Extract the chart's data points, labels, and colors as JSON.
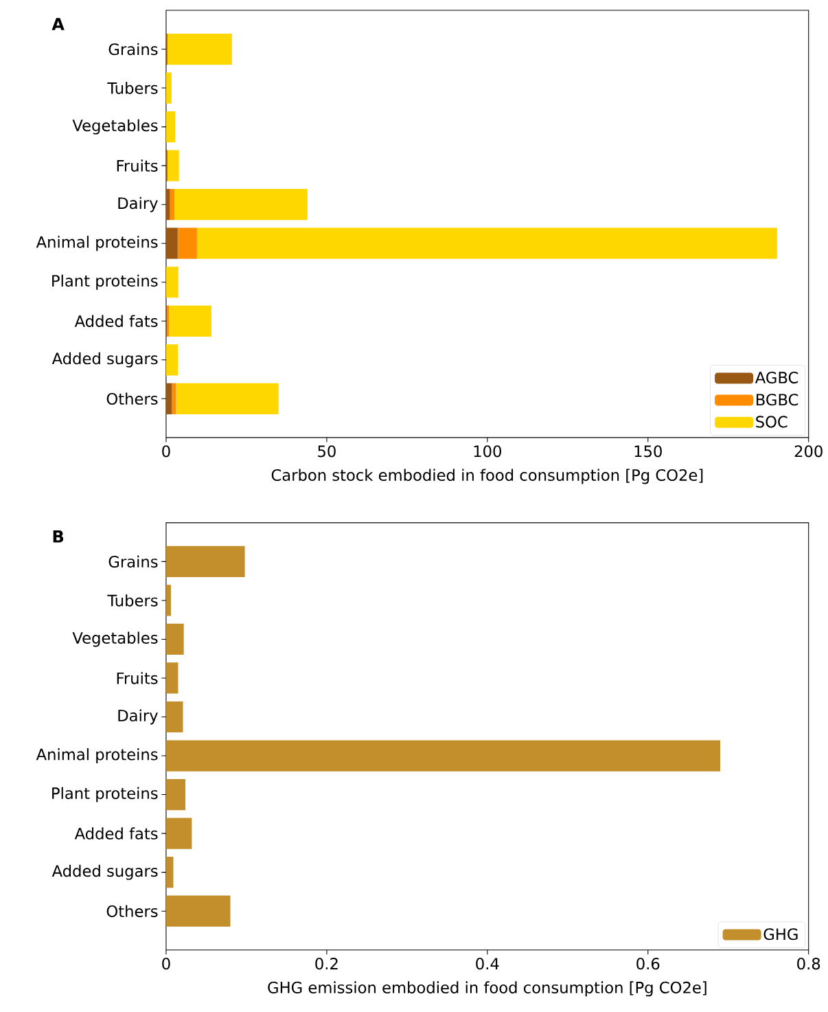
{
  "chart_data": [
    {
      "type": "bar",
      "title": "A",
      "orientation": "horizontal",
      "stacked": true,
      "categories": [
        "Grains",
        "Tubers",
        "Vegetables",
        "Fruits",
        "Dairy",
        "Animal proteins",
        "Plant proteins",
        "Added fats",
        "Added sugars",
        "Others"
      ],
      "series": [
        {
          "name": "AGBC",
          "color": "#995914",
          "values": [
            0.4,
            0.0,
            0.0,
            0.4,
            1.2,
            3.6,
            null,
            0.3,
            0.0,
            1.8
          ]
        },
        {
          "name": "BGBC",
          "color": "#ff8c00",
          "values": [
            null,
            0.0,
            0.0,
            0.0,
            1.4,
            6.0,
            0.0,
            0.6,
            0.0,
            1.3
          ]
        },
        {
          "name": "SOC",
          "color": "#ffd700",
          "values": [
            20.1,
            1.7,
            2.8,
            3.6,
            41.4,
            180.6,
            3.8,
            13.2,
            3.7,
            31.9
          ]
        }
      ],
      "xlim": [
        0,
        200
      ],
      "xticks": [
        0,
        50,
        100,
        150,
        200
      ],
      "xlabel": "Carbon stock embodied in food consumption [Pg CO2e]",
      "legend": "bottom right"
    },
    {
      "type": "bar",
      "title": "B",
      "orientation": "horizontal",
      "categories": [
        "Grains",
        "Tubers",
        "Vegetables",
        "Fruits",
        "Dairy",
        "Animal proteins",
        "Plant proteins",
        "Added fats",
        "Added sugars",
        "Others"
      ],
      "series": [
        {
          "name": "GHG",
          "color": "#c28f2c",
          "values": [
            0.098,
            0.006,
            0.022,
            0.015,
            0.021,
            0.69,
            0.024,
            0.032,
            0.009,
            0.08
          ]
        }
      ],
      "xlim": [
        0,
        0.8
      ],
      "xticks": [
        0,
        0.2,
        0.4,
        0.6,
        0.8
      ],
      "xlabel": "GHG emission embodied in food consumption [Pg CO2e]",
      "legend": "bottom right"
    }
  ]
}
